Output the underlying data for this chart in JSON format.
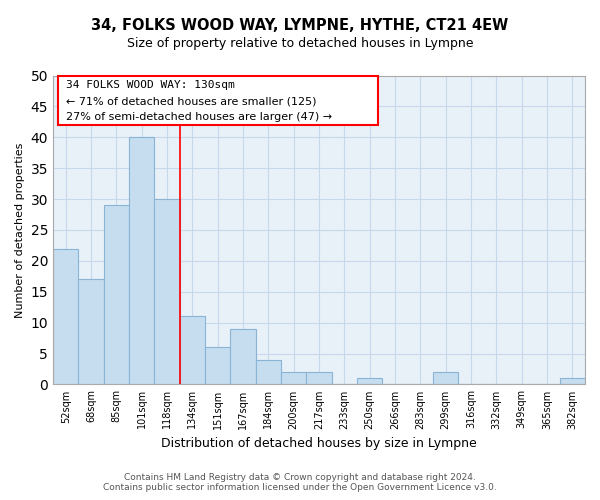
{
  "title": "34, FOLKS WOOD WAY, LYMPNE, HYTHE, CT21 4EW",
  "subtitle": "Size of property relative to detached houses in Lympne",
  "xlabel": "Distribution of detached houses by size in Lympne",
  "ylabel": "Number of detached properties",
  "footer_line1": "Contains HM Land Registry data © Crown copyright and database right 2024.",
  "footer_line2": "Contains public sector information licensed under the Open Government Licence v3.0.",
  "bin_labels": [
    "52sqm",
    "68sqm",
    "85sqm",
    "101sqm",
    "118sqm",
    "134sqm",
    "151sqm",
    "167sqm",
    "184sqm",
    "200sqm",
    "217sqm",
    "233sqm",
    "250sqm",
    "266sqm",
    "283sqm",
    "299sqm",
    "316sqm",
    "332sqm",
    "349sqm",
    "365sqm",
    "382sqm"
  ],
  "bar_heights": [
    22,
    17,
    29,
    40,
    30,
    11,
    6,
    9,
    4,
    2,
    2,
    0,
    1,
    0,
    0,
    2,
    0,
    0,
    0,
    0,
    1
  ],
  "bar_color": "#c6ddf0",
  "bar_edge_color": "#8ab4d4",
  "ylim": [
    0,
    50
  ],
  "yticks": [
    0,
    5,
    10,
    15,
    20,
    25,
    30,
    35,
    40,
    45,
    50
  ],
  "red_line_x": 5,
  "property_line_label": "34 FOLKS WOOD WAY: 130sqm",
  "annotation_line1": "← 71% of detached houses are smaller (125)",
  "annotation_line2": "27% of semi-detached houses are larger (47) →",
  "background_color": "#ffffff",
  "grid_color": "#c8d8ec",
  "ax_bg_color": "#e8f0f8"
}
